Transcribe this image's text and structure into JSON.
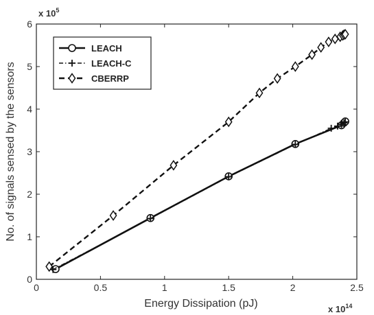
{
  "chart_data": {
    "type": "line",
    "title": "",
    "xlabel": "Energy Dissipation (pJ)",
    "ylabel": "No. of signals sensed by the sensors",
    "x_multiplier": "x 10",
    "x_multiplier_exp": "14",
    "y_multiplier": "x 10",
    "y_multiplier_exp": "5",
    "xlim": [
      0,
      2.5
    ],
    "ylim": [
      0,
      6
    ],
    "xticks": [
      0,
      0.5,
      1,
      1.5,
      2,
      2.5
    ],
    "yticks": [
      0,
      1,
      2,
      3,
      4,
      5,
      6
    ],
    "xtick_labels": [
      "0",
      "0.5",
      "1",
      "1.5",
      "2",
      "2.5"
    ],
    "ytick_labels": [
      "0",
      "1",
      "2",
      "3",
      "4",
      "5",
      "6"
    ],
    "grid": false,
    "legend_position": "top-left",
    "series": [
      {
        "name": "LEACH",
        "line": "solid",
        "marker": "circle",
        "x": [
          0.15,
          0.89,
          1.5,
          2.02,
          2.38,
          2.4,
          2.41
        ],
        "y": [
          0.24,
          1.44,
          2.42,
          3.18,
          3.62,
          3.68,
          3.71
        ]
      },
      {
        "name": "LEACH-C",
        "line": "dashdot",
        "marker": "plus",
        "x": [
          0.13,
          0.89,
          1.5,
          2.02,
          2.3,
          2.35,
          2.38,
          2.4,
          2.41
        ],
        "y": [
          0.23,
          1.43,
          2.41,
          3.17,
          3.55,
          3.6,
          3.64,
          3.68,
          3.7
        ]
      },
      {
        "name": "CBERRP",
        "line": "dashed",
        "marker": "diamond",
        "x": [
          0.1,
          0.6,
          1.07,
          1.5,
          1.74,
          1.88,
          2.02,
          2.15,
          2.22,
          2.28,
          2.33,
          2.37,
          2.39,
          2.4,
          2.41
        ],
        "y": [
          0.3,
          1.5,
          2.68,
          3.7,
          4.38,
          4.72,
          5.0,
          5.28,
          5.45,
          5.58,
          5.65,
          5.7,
          5.73,
          5.75,
          5.76
        ]
      }
    ]
  }
}
